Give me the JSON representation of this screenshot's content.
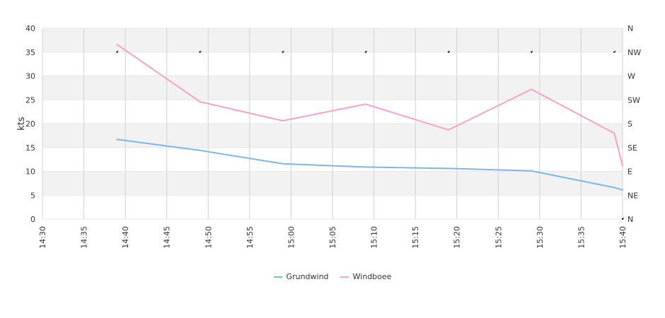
{
  "chart_data": {
    "type": "line",
    "ylabel": "kts",
    "ylim": [
      0,
      40
    ],
    "y_ticks": [
      "0",
      "5",
      "10",
      "15",
      "20",
      "25",
      "30",
      "35",
      "40"
    ],
    "y2_ticks": [
      "N",
      "NE",
      "E",
      "SE",
      "S",
      "SW",
      "W",
      "NW",
      "N"
    ],
    "x_ticks": [
      "14:30",
      "14:35",
      "14:40",
      "14:45",
      "14:50",
      "14:55",
      "15:00",
      "15:05",
      "15:10",
      "15:15",
      "15:20",
      "15:25",
      "15:30",
      "15:35",
      "15:40"
    ],
    "xlim": [
      "14:30",
      "15:40"
    ],
    "grid": true,
    "legend_position": "bottom",
    "series": [
      {
        "name": "Grundwind",
        "color": "#7cb5ec",
        "points": [
          {
            "x": "14:39",
            "y": 16.7
          },
          {
            "x": "14:49",
            "y": 14.4
          },
          {
            "x": "14:59",
            "y": 11.6
          },
          {
            "x": "15:09",
            "y": 10.9
          },
          {
            "x": "15:19",
            "y": 10.6
          },
          {
            "x": "15:29",
            "y": 10.1
          },
          {
            "x": "15:39",
            "y": 6.6
          },
          {
            "x": "15:40",
            "y": 6.1
          }
        ]
      },
      {
        "name": "Windboee",
        "color": "#f7a1c4",
        "points": [
          {
            "x": "14:39",
            "y": 36.6
          },
          {
            "x": "14:49",
            "y": 24.6
          },
          {
            "x": "14:59",
            "y": 20.6
          },
          {
            "x": "15:09",
            "y": 24.1
          },
          {
            "x": "15:19",
            "y": 18.7
          },
          {
            "x": "15:29",
            "y": 27.2
          },
          {
            "x": "15:39",
            "y": 18.0
          },
          {
            "x": "15:40",
            "y": 11.2
          }
        ]
      }
    ],
    "direction_markers": [
      {
        "x": "14:39",
        "direction": "NW"
      },
      {
        "x": "14:49",
        "direction": "NW"
      },
      {
        "x": "14:59",
        "direction": "NW"
      },
      {
        "x": "15:09",
        "direction": "NW"
      },
      {
        "x": "15:19",
        "direction": "NW"
      },
      {
        "x": "15:29",
        "direction": "NW"
      },
      {
        "x": "15:39",
        "direction": "NW"
      },
      {
        "x": "15:40",
        "direction": "N"
      }
    ]
  }
}
